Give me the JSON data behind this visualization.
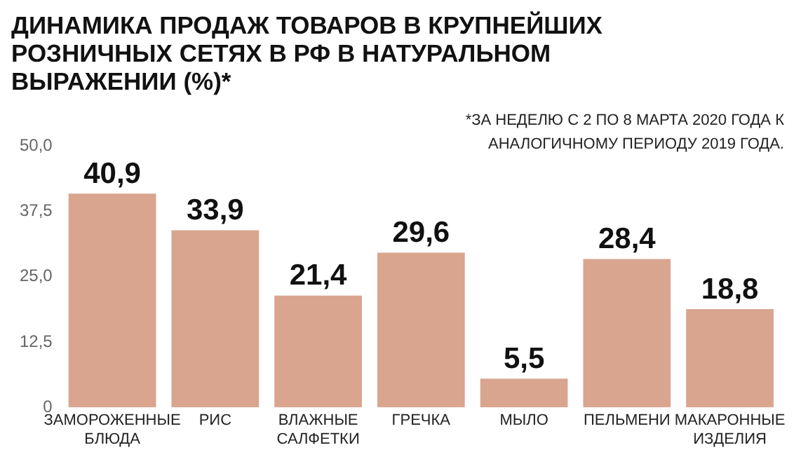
{
  "chart_data": {
    "type": "bar",
    "title": "ДИНАМИКА ПРОДАЖ ТОВАРОВ В КРУПНЕЙШИХ РОЗНИЧНЫХ СЕТЯХ В РФ В НАТУРАЛЬНОМ ВЫРАЖЕНИИ (%)*",
    "annotations": [
      "*ЗА НЕДЕЛЮ С 2 ПО 8 МАРТА 2020 ГОДА К АНАЛОГИЧНОМУ ПЕРИОДУ 2019 ГОДА."
    ],
    "categories": [
      "ЗАМОРОЖЕННЫЕ БЛЮДА",
      "РИС",
      "ВЛАЖНЫЕ САЛФЕТКИ",
      "ГРЕЧКА",
      "МЫЛО",
      "ПЕЛЬМЕНИ",
      "МАКАРОННЫЕ ИЗДЕЛИЯ"
    ],
    "values": [
      40.9,
      33.9,
      21.4,
      29.6,
      5.5,
      28.4,
      18.8
    ],
    "value_labels": [
      "40,9",
      "33,9",
      "21,4",
      "29,6",
      "5,5",
      "28,4",
      "18,8"
    ],
    "color": "#d9a58f",
    "ylim": [
      0,
      50
    ],
    "yticks": [
      0,
      {
        "value": 12.5,
        "label": "12,5"
      },
      {
        "value": 25,
        "label": "25,0"
      },
      {
        "value": 37.5,
        "label": "37,5"
      },
      {
        "value": 50,
        "label": "50,0"
      }
    ],
    "grid": false,
    "legend": false
  }
}
